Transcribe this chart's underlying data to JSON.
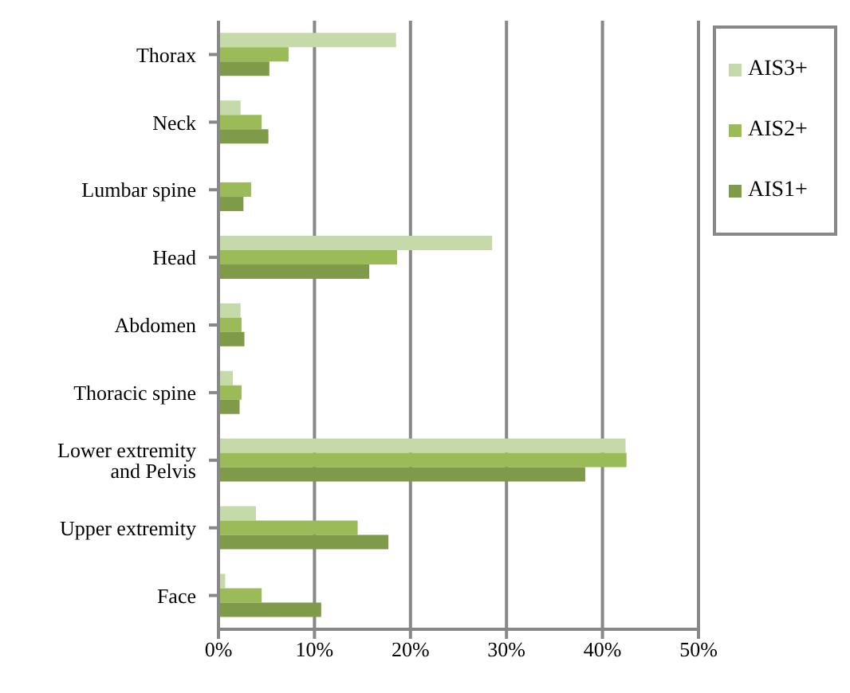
{
  "chart_data": {
    "type": "bar",
    "orientation": "horizontal",
    "categories": [
      "Thorax",
      "Neck",
      "Lumbar spine",
      "Head",
      "Abdomen",
      "Thoracic spine",
      "Lower extremity and Pelvis",
      "Upper extremity",
      "Face"
    ],
    "series": [
      {
        "name": "AIS3+",
        "color": "#c6d9a8",
        "values": [
          18.5,
          2.3,
          0,
          28.5,
          2.3,
          1.5,
          42.4,
          3.9,
          0.7
        ]
      },
      {
        "name": "AIS2+",
        "color": "#9bbb59",
        "values": [
          7.3,
          4.5,
          3.4,
          18.6,
          2.4,
          2.4,
          42.5,
          14.5,
          4.5
        ]
      },
      {
        "name": "AIS1+",
        "color": "#7f9a48",
        "values": [
          5.3,
          5.2,
          2.6,
          15.7,
          2.7,
          2.2,
          38.2,
          17.7,
          10.7
        ]
      }
    ],
    "xlim": [
      0,
      50
    ],
    "xticks": [
      {
        "value": 0,
        "label": "0%"
      },
      {
        "value": 10,
        "label": "10%"
      },
      {
        "value": 20,
        "label": "20%"
      },
      {
        "value": 30,
        "label": "30%"
      },
      {
        "value": 40,
        "label": "40%"
      },
      {
        "value": 50,
        "label": "50%"
      }
    ],
    "grid": "x",
    "legend": "top right"
  }
}
